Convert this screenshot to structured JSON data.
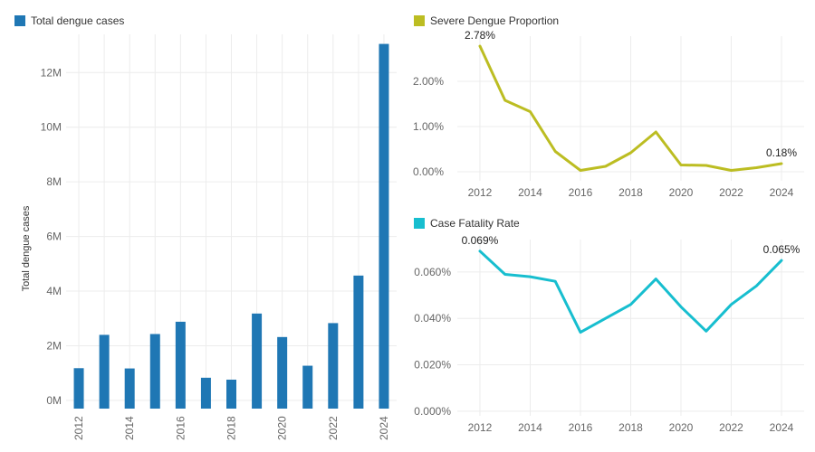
{
  "colors": {
    "bar": "#1f77b4",
    "severe": "#bcbd22",
    "cfr": "#17becf",
    "grid": "#ececec",
    "axis_text": "#666666",
    "label_text": "#222222"
  },
  "chart_data": [
    {
      "id": "total-cases",
      "type": "bar",
      "legend": "Total dengue cases",
      "ylabel": "Total dengue cases",
      "categories": [
        "2012",
        "2013",
        "2014",
        "2015",
        "2016",
        "2017",
        "2018",
        "2019",
        "2020",
        "2021",
        "2022",
        "2023",
        "2024"
      ],
      "values": [
        1180000,
        2400000,
        1170000,
        2430000,
        2880000,
        830000,
        760000,
        3180000,
        2320000,
        1270000,
        2830000,
        4570000,
        13050000
      ],
      "yticks": [
        0,
        2000000,
        4000000,
        6000000,
        8000000,
        10000000,
        12000000
      ],
      "ytick_labels": [
        "0M",
        "2M",
        "4M",
        "6M",
        "8M",
        "10M",
        "12M"
      ],
      "xtick_labels": [
        "2012",
        "2014",
        "2016",
        "2018",
        "2020",
        "2022",
        "2024"
      ],
      "ylim": [
        -300000,
        13400000
      ]
    },
    {
      "id": "severe-proportion",
      "type": "line",
      "legend": "Severe Dengue Proportion",
      "x": [
        2012,
        2013,
        2014,
        2015,
        2016,
        2017,
        2018,
        2019,
        2020,
        2021,
        2022,
        2023,
        2024
      ],
      "values": [
        2.78,
        1.58,
        1.33,
        0.45,
        0.03,
        0.12,
        0.42,
        0.88,
        0.15,
        0.14,
        0.03,
        0.09,
        0.18
      ],
      "yticks": [
        0,
        1,
        2
      ],
      "ytick_labels": [
        "0.00%",
        "1.00%",
        "2.00%"
      ],
      "xtick_labels": [
        "2012",
        "2014",
        "2016",
        "2018",
        "2020",
        "2022",
        "2024"
      ],
      "ylim": [
        -0.2,
        3.0
      ],
      "xlim": [
        2011.1,
        2024.9
      ],
      "annotations": [
        {
          "index": 0,
          "text": "2.78%"
        },
        {
          "index": 12,
          "text": "0.18%"
        }
      ]
    },
    {
      "id": "case-fatality",
      "type": "line",
      "legend": "Case Fatality Rate",
      "x": [
        2012,
        2013,
        2014,
        2015,
        2016,
        2017,
        2018,
        2019,
        2020,
        2021,
        2022,
        2023,
        2024
      ],
      "values": [
        0.069,
        0.059,
        0.058,
        0.056,
        0.034,
        0.04,
        0.046,
        0.057,
        0.045,
        0.0345,
        0.046,
        0.054,
        0.065
      ],
      "yticks": [
        0,
        0.02,
        0.04,
        0.06
      ],
      "ytick_labels": [
        "0.000%",
        "0.020%",
        "0.040%",
        "0.060%"
      ],
      "xtick_labels": [
        "2012",
        "2014",
        "2016",
        "2018",
        "2020",
        "2022",
        "2024"
      ],
      "ylim": [
        -0.002,
        0.074
      ],
      "xlim": [
        2011.1,
        2024.9
      ],
      "annotations": [
        {
          "index": 0,
          "text": "0.069%"
        },
        {
          "index": 12,
          "text": "0.065%"
        }
      ]
    }
  ]
}
